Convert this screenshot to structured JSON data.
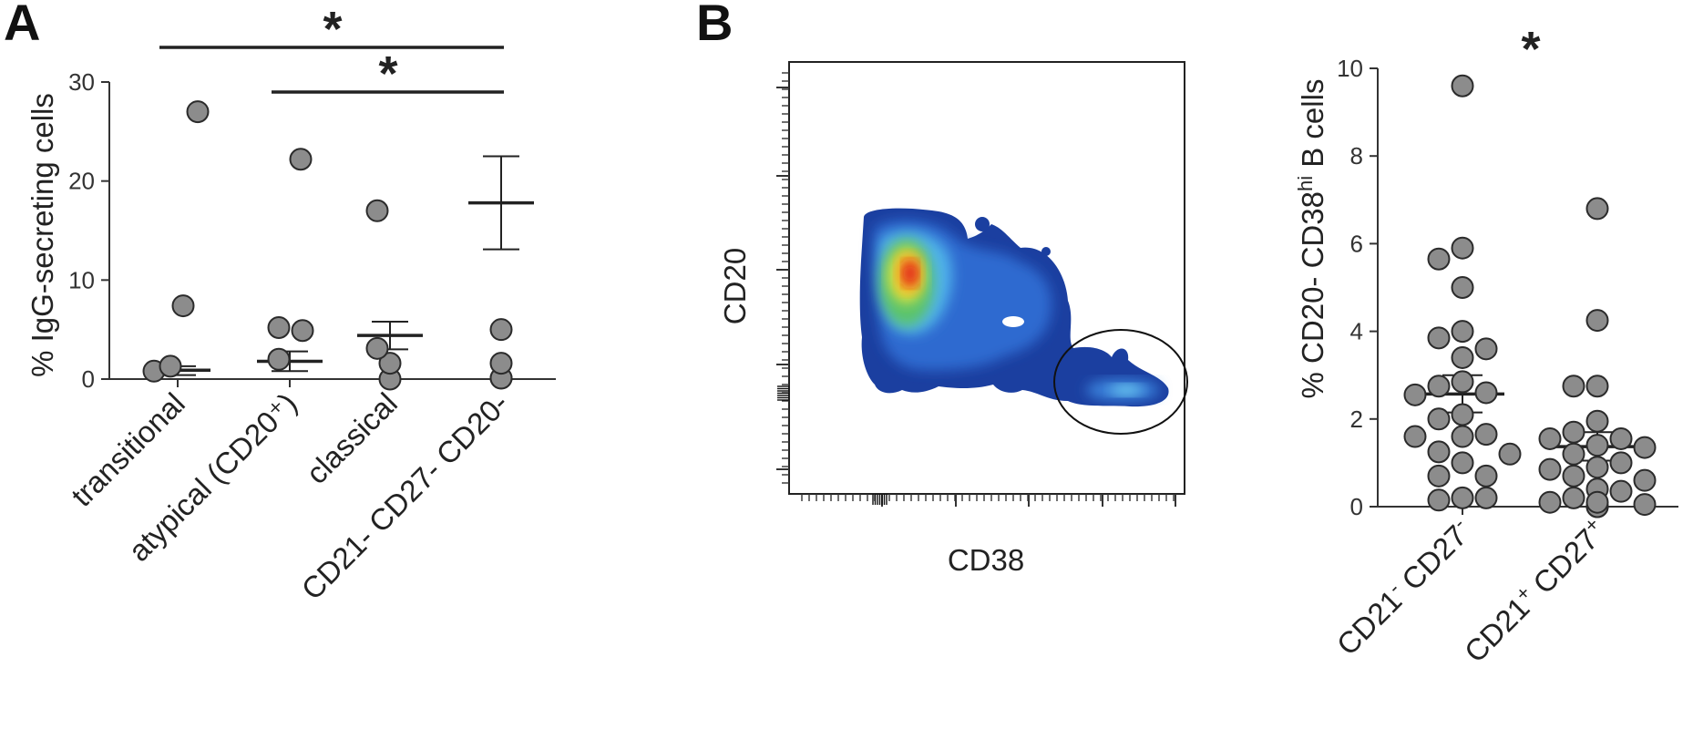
{
  "panels": {
    "A": {
      "letter": "A"
    },
    "B": {
      "letter": "B"
    }
  },
  "chart_data": [
    {
      "panel": "A",
      "type": "scatter",
      "ylabel": "% IgG-secreting cells",
      "ylim": [
        0,
        30
      ],
      "yticks": [
        0,
        10,
        20,
        30
      ],
      "categories": [
        "transitional",
        "atypical (CD20⁺)",
        "classical",
        "CD21- CD27- CD20-"
      ],
      "points": [
        [
          0.8,
          2.0,
          0.0,
          0.1
        ],
        [
          1.3,
          4.9,
          1.6,
          0.1
        ],
        [
          7.4,
          5.2,
          3.1,
          1.6
        ],
        [
          27.0,
          22.2,
          17.0,
          5.0
        ]
      ],
      "mean": [
        0.9,
        1.8,
        4.4,
        17.8
      ],
      "error": [
        [
          0.4,
          1.3
        ],
        [
          0.8,
          2.8
        ],
        [
          3.0,
          5.8
        ],
        [
          13.1,
          22.5
        ]
      ],
      "significance": [
        {
          "from": 0,
          "to": 3,
          "label": "*"
        },
        {
          "from": 1,
          "to": 3,
          "label": "*"
        }
      ]
    },
    {
      "panel": "B-flow",
      "type": "heatmap",
      "xlabel": "CD38",
      "ylabel": "CD20",
      "gate": "ellipse"
    },
    {
      "panel": "B-scatter",
      "type": "scatter",
      "ylabel_main": "% CD20- CD38",
      "ylabel_sup": "hi",
      "ylabel_tail": " B cells",
      "ylim": [
        0,
        10
      ],
      "yticks": [
        0,
        2,
        4,
        6,
        8,
        10
      ],
      "categories": [
        {
          "base1": "CD21",
          "sup1": "-",
          "mid": " CD27",
          "sup2": "-"
        },
        {
          "base1": "CD21",
          "sup1": "+",
          "mid": " CD27",
          "sup2": "+"
        }
      ],
      "points": [
        [
          9.6,
          5.9,
          5.65,
          5.0,
          4.0,
          3.85,
          3.4,
          3.6,
          2.85,
          2.75,
          2.6,
          2.55,
          2.1,
          2.0,
          1.65,
          1.6,
          1.6,
          1.25,
          1.2,
          1.0,
          0.7,
          0.7,
          0.2,
          0.15,
          0.2
        ],
        [
          6.8,
          4.25,
          2.75,
          2.75,
          1.95,
          1.7,
          1.55,
          1.55,
          1.4,
          1.35,
          1.2,
          1.0,
          0.9,
          0.85,
          0.7,
          0.6,
          0.4,
          0.35,
          0.2,
          0.1,
          0.05,
          0.0,
          0.0,
          0.1
        ]
      ],
      "mean": [
        2.57,
        1.37
      ],
      "error": [
        [
          2.15,
          3.0
        ],
        [
          1.05,
          1.7
        ]
      ],
      "significance": [
        {
          "from": 0,
          "to": 1,
          "label": "*"
        }
      ]
    }
  ]
}
